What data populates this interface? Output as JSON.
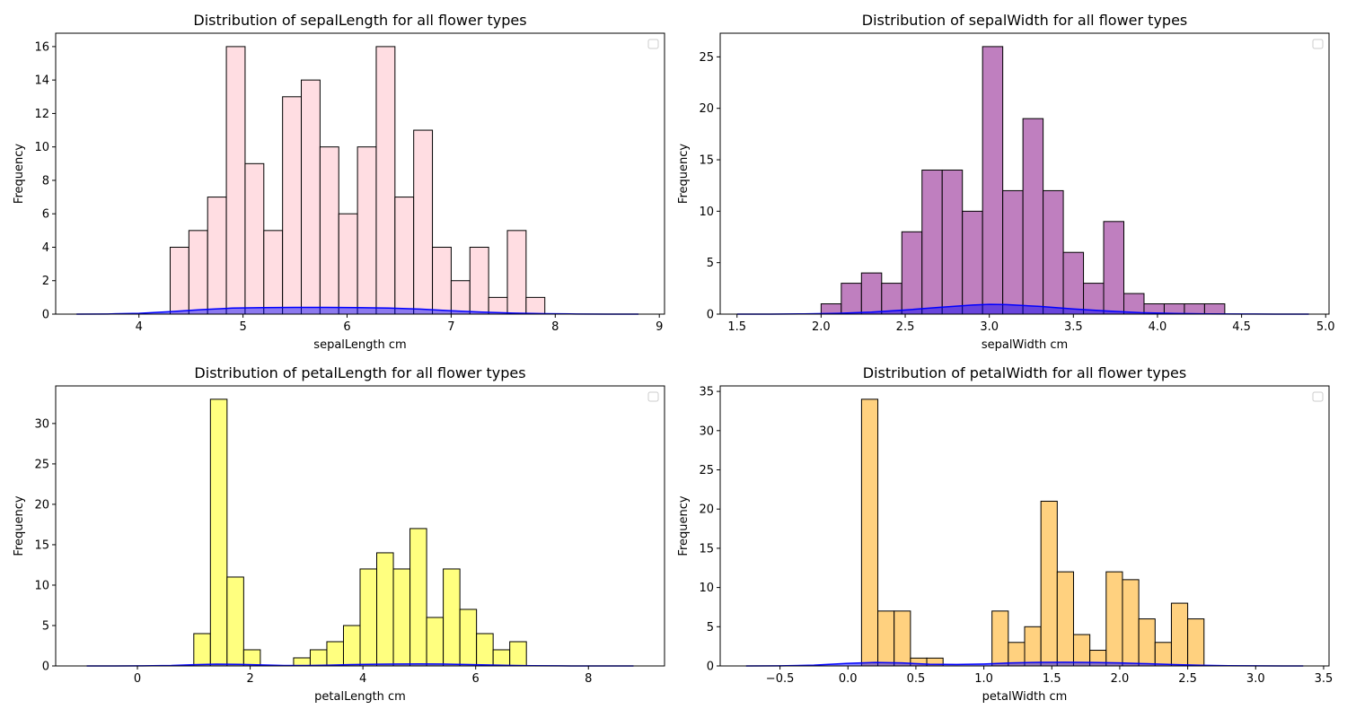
{
  "chart_data": [
    {
      "type": "bar",
      "title": "Distribution of sepalLength for all flower types",
      "xlabel": "sepalLength cm",
      "ylabel": "Frequency",
      "color": "#ffdde2",
      "edgecolor": "#000000",
      "kde_color": "#0000ff",
      "xlim": [
        3.2,
        9.05
      ],
      "ylim": [
        0,
        16.8
      ],
      "xticks": [
        4,
        5,
        6,
        7,
        8,
        9
      ],
      "yticks": [
        0,
        2,
        4,
        6,
        8,
        10,
        12,
        14,
        16
      ],
      "bin_start": 4.3,
      "bin_width": 0.18,
      "values": [
        4,
        5,
        7,
        16,
        9,
        5,
        13,
        14,
        10,
        6,
        10,
        16,
        7,
        11,
        4,
        2,
        4,
        1,
        5,
        1
      ],
      "kde": {
        "x": [
          3.4,
          3.7,
          4.0,
          4.3,
          4.6,
          4.9,
          5.2,
          5.5,
          5.8,
          6.1,
          6.4,
          6.7,
          7.0,
          7.3,
          7.6,
          7.9,
          8.2,
          8.5,
          8.8
        ],
        "y": [
          0,
          0.01,
          0.05,
          0.15,
          0.27,
          0.36,
          0.39,
          0.4,
          0.4,
          0.39,
          0.36,
          0.3,
          0.2,
          0.12,
          0.06,
          0.03,
          0.01,
          0,
          0
        ]
      },
      "legend": "top-right"
    },
    {
      "type": "bar",
      "title": "Distribution of sepalWidth for all flower types",
      "xlabel": "sepalWidth cm",
      "ylabel": "Frequency",
      "color": "#bf7fbf",
      "edgecolor": "#000000",
      "kde_color": "#0000ff",
      "xlim": [
        1.4,
        5.02
      ],
      "ylim": [
        0,
        27.3
      ],
      "xticks": [
        1.5,
        2.0,
        2.5,
        3.0,
        3.5,
        4.0,
        4.5,
        5.0
      ],
      "yticks": [
        0,
        5,
        10,
        15,
        20,
        25
      ],
      "bin_start": 2.0,
      "bin_width": 0.12,
      "values": [
        1,
        3,
        4,
        3,
        8,
        14,
        14,
        10,
        26,
        12,
        19,
        12,
        6,
        3,
        9,
        2,
        1,
        1,
        1,
        1
      ],
      "kde": {
        "x": [
          1.5,
          1.7,
          1.9,
          2.1,
          2.3,
          2.5,
          2.7,
          2.9,
          3.0,
          3.1,
          3.3,
          3.5,
          3.7,
          3.9,
          4.1,
          4.3,
          4.5,
          4.7,
          4.9
        ],
        "y": [
          0,
          0,
          0.02,
          0.08,
          0.2,
          0.4,
          0.65,
          0.88,
          0.95,
          0.93,
          0.75,
          0.5,
          0.3,
          0.14,
          0.06,
          0.02,
          0.01,
          0,
          0
        ]
      },
      "legend": "top-right"
    },
    {
      "type": "bar",
      "title": "Distribution of petalLength for all flower types",
      "xlabel": "petalLength cm",
      "ylabel": "Frequency",
      "color": "#ffff7f",
      "edgecolor": "#000000",
      "kde_color": "#0000ff",
      "xlim": [
        -1.45,
        9.35
      ],
      "ylim": [
        0,
        34.65
      ],
      "xticks": [
        0,
        2,
        4,
        6,
        8
      ],
      "yticks": [
        0,
        5,
        10,
        15,
        20,
        25,
        30
      ],
      "bin_start": 1.0,
      "bin_width": 0.295,
      "values": [
        4,
        33,
        11,
        2,
        0,
        0,
        1,
        2,
        3,
        5,
        12,
        14,
        12,
        17,
        6,
        12,
        7,
        4,
        2,
        3
      ],
      "kde": {
        "x": [
          -0.9,
          -0.4,
          0.1,
          0.6,
          1.0,
          1.4,
          1.8,
          2.2,
          2.6,
          3.0,
          3.4,
          3.8,
          4.2,
          4.6,
          5.0,
          5.4,
          5.8,
          6.2,
          6.6,
          7.0,
          7.5,
          8.0,
          8.5,
          8.8
        ],
        "y": [
          0,
          0,
          0.01,
          0.05,
          0.15,
          0.22,
          0.2,
          0.12,
          0.06,
          0.06,
          0.1,
          0.16,
          0.21,
          0.24,
          0.25,
          0.23,
          0.18,
          0.12,
          0.07,
          0.03,
          0.01,
          0,
          0,
          0
        ]
      },
      "legend": "top-right"
    },
    {
      "type": "bar",
      "title": "Distribution of petalWidth for all flower types",
      "xlabel": "petalWidth cm",
      "ylabel": "Frequency",
      "color": "#ffd17f",
      "edgecolor": "#000000",
      "kde_color": "#0000ff",
      "xlim": [
        -0.94,
        3.54
      ],
      "ylim": [
        0,
        35.7
      ],
      "xticks": [
        -0.5,
        0.0,
        0.5,
        1.0,
        1.5,
        2.0,
        2.5,
        3.0,
        3.5
      ],
      "yticks": [
        0,
        5,
        10,
        15,
        20,
        25,
        30,
        35
      ],
      "bin_start": 0.1,
      "bin_width": 0.12,
      "values": [
        34,
        7,
        7,
        1,
        1,
        0,
        0,
        0,
        7,
        3,
        5,
        21,
        12,
        4,
        2,
        12,
        11,
        6,
        3,
        8,
        6
      ],
      "kde": {
        "x": [
          -0.75,
          -0.5,
          -0.25,
          0.0,
          0.2,
          0.4,
          0.6,
          0.8,
          1.0,
          1.2,
          1.4,
          1.6,
          1.8,
          2.0,
          2.2,
          2.4,
          2.6,
          2.8,
          3.0,
          3.2,
          3.35
        ],
        "y": [
          0,
          0.01,
          0.1,
          0.33,
          0.45,
          0.38,
          0.22,
          0.18,
          0.25,
          0.38,
          0.46,
          0.47,
          0.44,
          0.38,
          0.28,
          0.17,
          0.08,
          0.03,
          0.01,
          0,
          0
        ]
      },
      "legend": "top-right"
    }
  ]
}
